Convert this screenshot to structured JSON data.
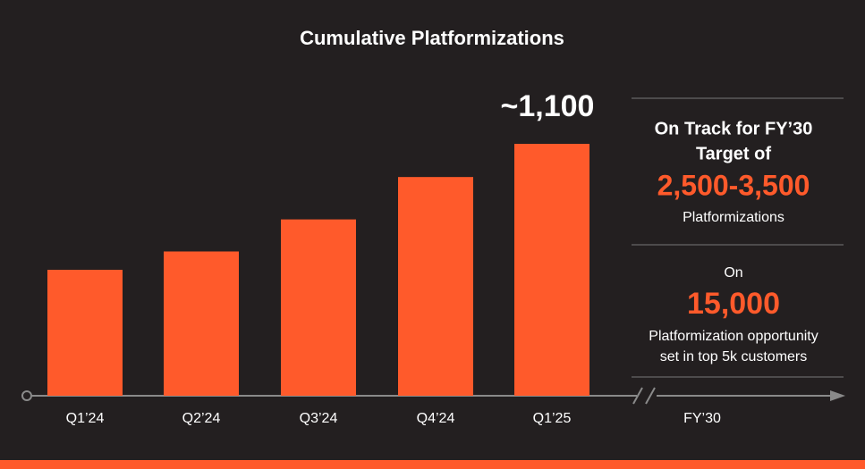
{
  "chart_data": {
    "type": "bar",
    "title": "Cumulative Platformizations",
    "categories": [
      "Q1’24",
      "Q2’24",
      "Q3’24",
      "Q4’24",
      "Q1’25",
      "FY’30"
    ],
    "values": [
      550,
      630,
      770,
      955,
      1100,
      null
    ],
    "value_labels": [
      null,
      null,
      null,
      null,
      "~1,100",
      null
    ],
    "color": "#ff5a2b",
    "highlight_color": "#ff5a2b",
    "annotations": [
      "On Track for FY’30",
      "Target of",
      "2,500-3,500",
      "Platformizations",
      "On",
      "15,000",
      "Platformization opportunity",
      "set in top 5k customers"
    ]
  }
}
